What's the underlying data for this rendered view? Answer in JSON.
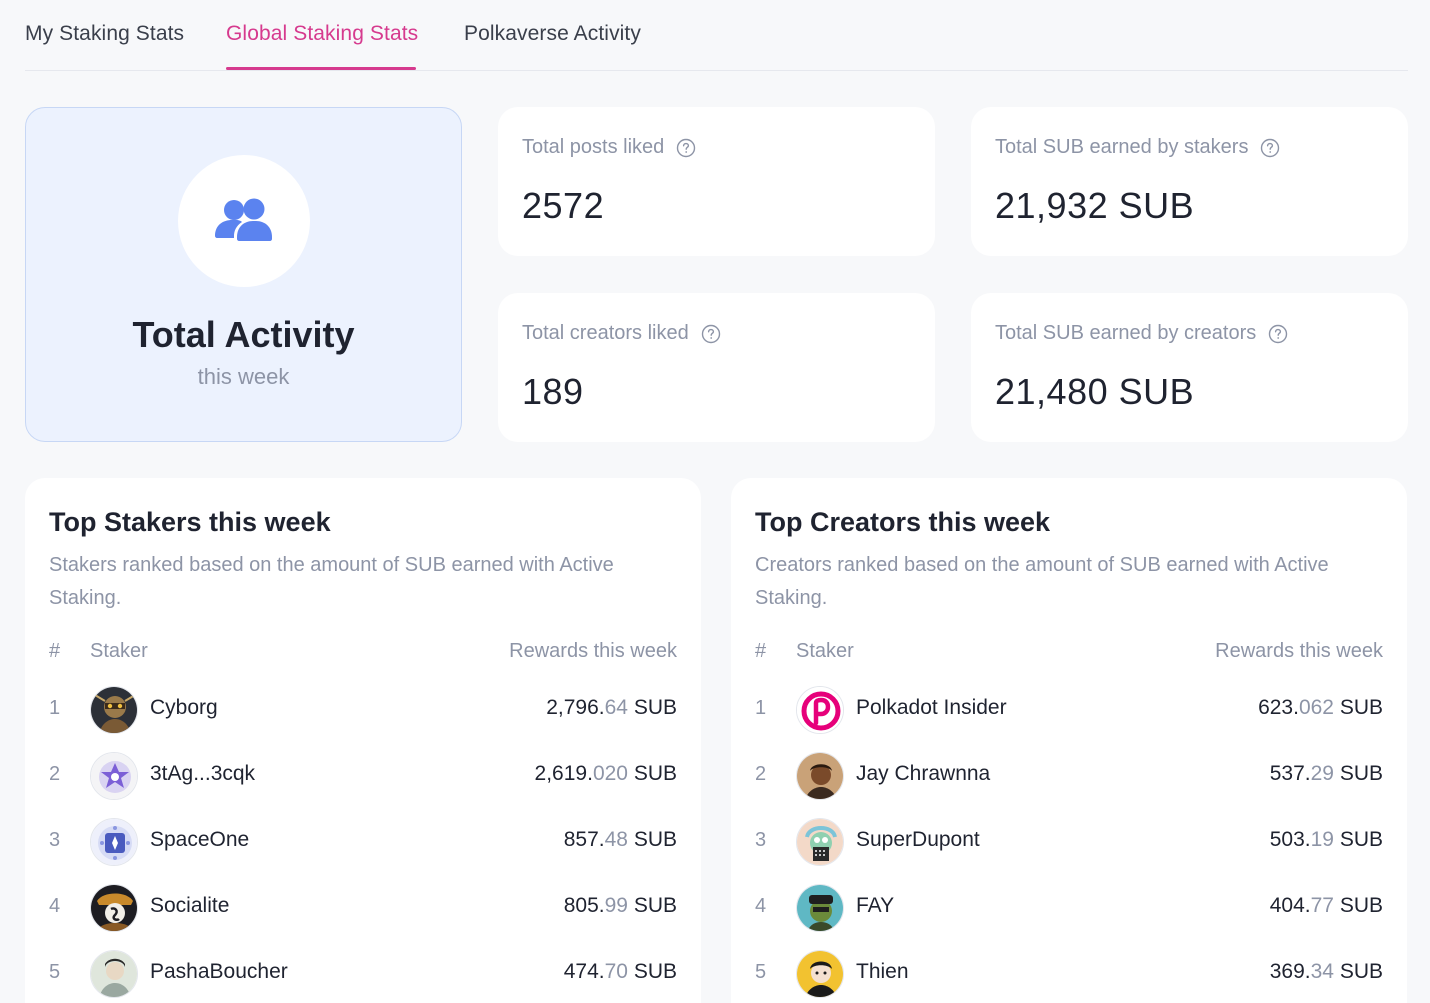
{
  "tabs": [
    {
      "label": "My Staking Stats",
      "active": false
    },
    {
      "label": "Global Staking Stats",
      "active": true
    },
    {
      "label": "Polkaverse Activity",
      "active": false
    }
  ],
  "activity": {
    "icon": "users-icon",
    "title": "Total Activity",
    "subtitle": "this week"
  },
  "stats": {
    "posts_liked": {
      "label": "Total posts liked",
      "value": "2572"
    },
    "sub_stakers": {
      "label": "Total SUB earned by stakers",
      "value": "21,932 SUB"
    },
    "creators_liked": {
      "label": "Total creators liked",
      "value": "189"
    },
    "sub_creators": {
      "label": "Total SUB earned by creators",
      "value": "21,480 SUB"
    }
  },
  "top_stakers": {
    "title": "Top Stakers this week",
    "description": "Stakers ranked based on the amount of SUB earned with Active Staking.",
    "headers": {
      "rank": "#",
      "name": "Staker",
      "reward": "Rewards this week"
    },
    "rows": [
      {
        "rank": "1",
        "name": "Cyborg",
        "int": "2,796.",
        "dec": "64",
        "unit": " SUB"
      },
      {
        "rank": "2",
        "name": "3tAg...3cqk",
        "int": "2,619.",
        "dec": "020",
        "unit": " SUB"
      },
      {
        "rank": "3",
        "name": "SpaceOne",
        "int": "857.",
        "dec": "48",
        "unit": " SUB"
      },
      {
        "rank": "4",
        "name": "Socialite",
        "int": "805.",
        "dec": "99",
        "unit": " SUB"
      },
      {
        "rank": "5",
        "name": "PashaBoucher",
        "int": "474.",
        "dec": "70",
        "unit": " SUB"
      }
    ]
  },
  "top_creators": {
    "title": "Top Creators this week",
    "description": "Creators ranked based on the amount of SUB earned with Active Staking.",
    "headers": {
      "rank": "#",
      "name": "Staker",
      "reward": "Rewards this week"
    },
    "rows": [
      {
        "rank": "1",
        "name": "Polkadot Insider",
        "int": "623.",
        "dec": "062",
        "unit": " SUB"
      },
      {
        "rank": "2",
        "name": "Jay Chrawnna",
        "int": "537.",
        "dec": "29",
        "unit": " SUB"
      },
      {
        "rank": "3",
        "name": "SuperDupont",
        "int": "503.",
        "dec": "19",
        "unit": " SUB"
      },
      {
        "rank": "4",
        "name": "FAY",
        "int": "404.",
        "dec": "77",
        "unit": " SUB"
      },
      {
        "rank": "5",
        "name": "Thien",
        "int": "369.",
        "dec": "34",
        "unit": " SUB"
      }
    ]
  },
  "colors": {
    "accent": "#d63a8e",
    "icon_blue": "#5b83ef",
    "muted": "#8d94a6",
    "activity_bg": "#ecf2fe"
  }
}
